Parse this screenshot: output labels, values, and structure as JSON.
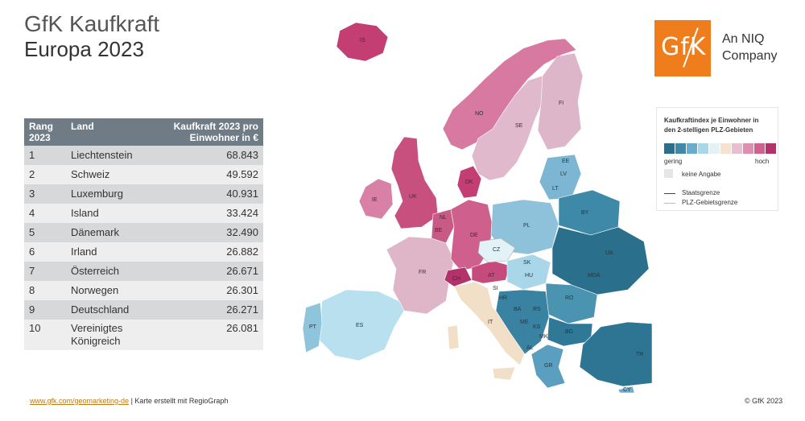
{
  "title": {
    "line1": "GfK Kaufkraft",
    "line2": "Europa 2023"
  },
  "logo": {
    "text": "GfK",
    "tagline1": "An NIQ",
    "tagline2": "Company"
  },
  "table": {
    "headers": {
      "rank": "Rang 2023",
      "country": "Land",
      "value": "Kaufkraft 2023 pro Einwohner in €"
    },
    "rows": [
      {
        "rank": "1",
        "country": "Liechtenstein",
        "value": "68.843"
      },
      {
        "rank": "2",
        "country": "Schweiz",
        "value": "49.592"
      },
      {
        "rank": "3",
        "country": "Luxemburg",
        "value": "40.931"
      },
      {
        "rank": "4",
        "country": "Island",
        "value": "33.424"
      },
      {
        "rank": "5",
        "country": "Dänemark",
        "value": "32.490"
      },
      {
        "rank": "6",
        "country": "Irland",
        "value": "26.882"
      },
      {
        "rank": "7",
        "country": "Österreich",
        "value": "26.671"
      },
      {
        "rank": "8",
        "country": "Norwegen",
        "value": "26.301"
      },
      {
        "rank": "9",
        "country": "Deutschland",
        "value": "26.271"
      },
      {
        "rank": "10",
        "country": "Vereinigtes Königreich",
        "value": "26.081"
      }
    ]
  },
  "legend": {
    "title": "Kaufkraftindex je Einwohner in den 2-stelligen PLZ-Gebieten",
    "colors": [
      "#2a6f8c",
      "#3e89a8",
      "#6aaccb",
      "#a9d6e8",
      "#e3f2f7",
      "#f5e3cf",
      "#e7bfd0",
      "#dc8fb0",
      "#d0608e",
      "#b33269"
    ],
    "low": "gering",
    "high": "hoch",
    "no_data": "keine Angabe",
    "state_border": "Staatsgrenze",
    "plz_border": "PLZ-Gebietsgrenze"
  },
  "map_labels": [
    "IS",
    "NO",
    "SE",
    "FI",
    "EE",
    "LV",
    "LT",
    "BY",
    "UA",
    "MDA",
    "RO",
    "BG",
    "TR",
    "GR",
    "AL",
    "MK",
    "KS",
    "ME",
    "BA",
    "RS",
    "HR",
    "HU",
    "SK",
    "PL",
    "CZ",
    "AT",
    "CH",
    "DE",
    "NL",
    "BE",
    "DK",
    "FR",
    "IE",
    "UK",
    "ES",
    "PT",
    "IT",
    "SI",
    "CY"
  ],
  "footer": {
    "link": "www.gfk.com/geomarketing-de",
    "credit": " | Karte erstellt mit RegioGraph",
    "copyright": "© GfK 2023"
  }
}
